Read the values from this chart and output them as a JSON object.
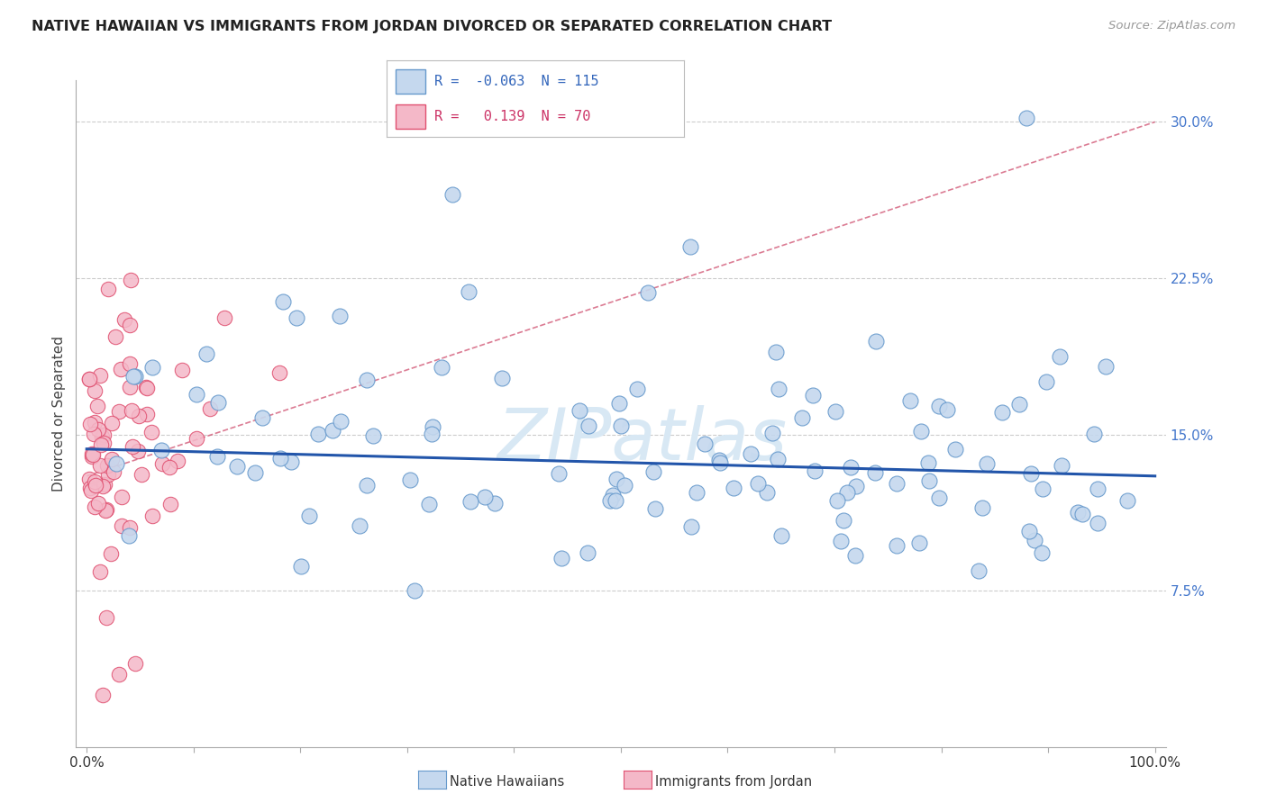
{
  "title": "NATIVE HAWAIIAN VS IMMIGRANTS FROM JORDAN DIVORCED OR SEPARATED CORRELATION CHART",
  "source": "Source: ZipAtlas.com",
  "ylabel": "Divorced or Separated",
  "xlim": [
    0,
    100
  ],
  "ylim": [
    0,
    32
  ],
  "blue_R": -0.063,
  "blue_N": 115,
  "pink_R": 0.139,
  "pink_N": 70,
  "bg_color": "#ffffff",
  "blue_color": "#c5d8ee",
  "blue_edge": "#6699cc",
  "pink_color": "#f4b8c8",
  "pink_edge": "#e05070",
  "grid_color": "#cccccc",
  "blue_line_color": "#2255aa",
  "pink_line_color": "#cc4466",
  "watermark_color": "#d8e8f4"
}
